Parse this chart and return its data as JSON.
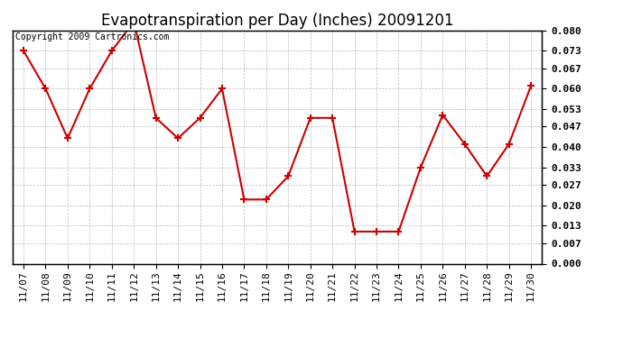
{
  "title": "Evapotranspiration per Day (Inches) 20091201",
  "copyright_text": "Copyright 2009 Cartronics.com",
  "x_labels": [
    "11/07",
    "11/08",
    "11/09",
    "11/10",
    "11/11",
    "11/12",
    "11/13",
    "11/14",
    "11/15",
    "11/16",
    "11/17",
    "11/18",
    "11/19",
    "11/20",
    "11/21",
    "11/22",
    "11/23",
    "11/24",
    "11/25",
    "11/26",
    "11/27",
    "11/28",
    "11/29",
    "11/30"
  ],
  "y_values": [
    0.073,
    0.06,
    0.043,
    0.06,
    0.073,
    0.083,
    0.05,
    0.043,
    0.05,
    0.06,
    0.022,
    0.022,
    0.03,
    0.05,
    0.05,
    0.011,
    0.011,
    0.011,
    0.033,
    0.051,
    0.041,
    0.03,
    0.041,
    0.061
  ],
  "line_color": "#cc0000",
  "marker": "+",
  "marker_size": 6,
  "marker_linewidth": 1.5,
  "background_color": "#ffffff",
  "plot_bg_color": "#ffffff",
  "grid_color": "#bbbbbb",
  "ylim": [
    0.0,
    0.08
  ],
  "yticks": [
    0.0,
    0.007,
    0.013,
    0.02,
    0.027,
    0.033,
    0.04,
    0.047,
    0.053,
    0.06,
    0.067,
    0.073,
    0.08
  ],
  "title_fontsize": 12,
  "tick_fontsize": 8,
  "copyright_fontsize": 7
}
